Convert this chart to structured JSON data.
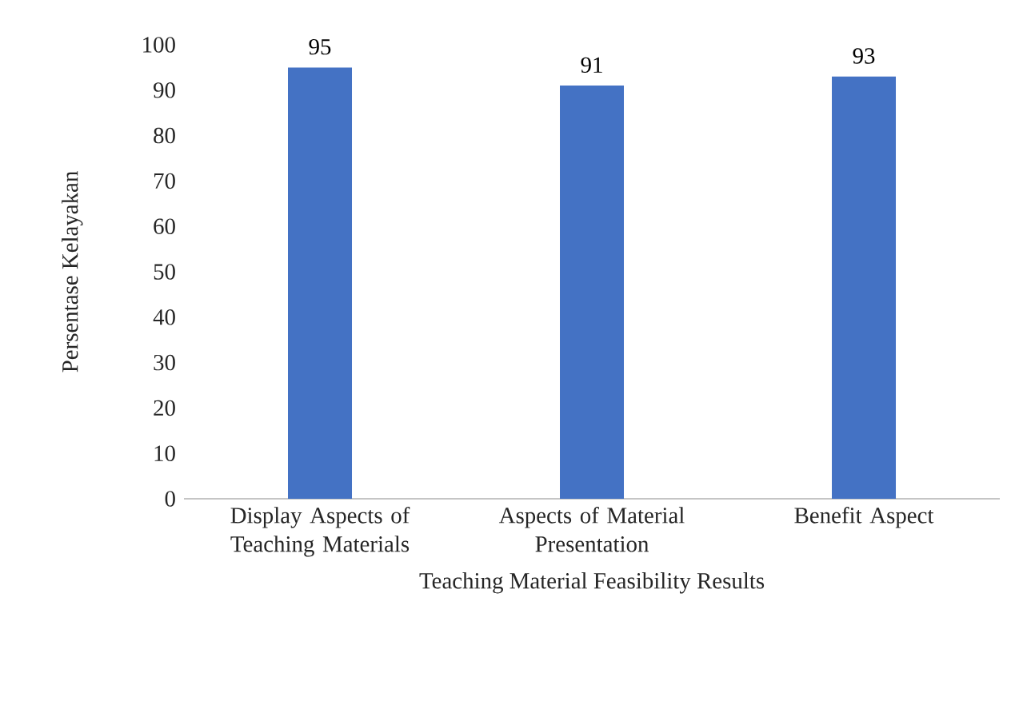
{
  "chart_data": {
    "type": "bar",
    "xlabel": "Teaching Material Feasibility Results",
    "ylabel": "Persentase Kelayakan",
    "categories": [
      "Display Aspects of Teaching Materials",
      "Aspects of Material Presentation",
      "Benefit Aspect"
    ],
    "values": [
      95,
      91,
      93
    ],
    "color": "#4472c4",
    "ylim": [
      0,
      100
    ],
    "yticks": [
      0,
      10,
      20,
      30,
      40,
      50,
      60,
      70,
      80,
      90,
      100
    ],
    "grid": false,
    "data_labels": true
  }
}
